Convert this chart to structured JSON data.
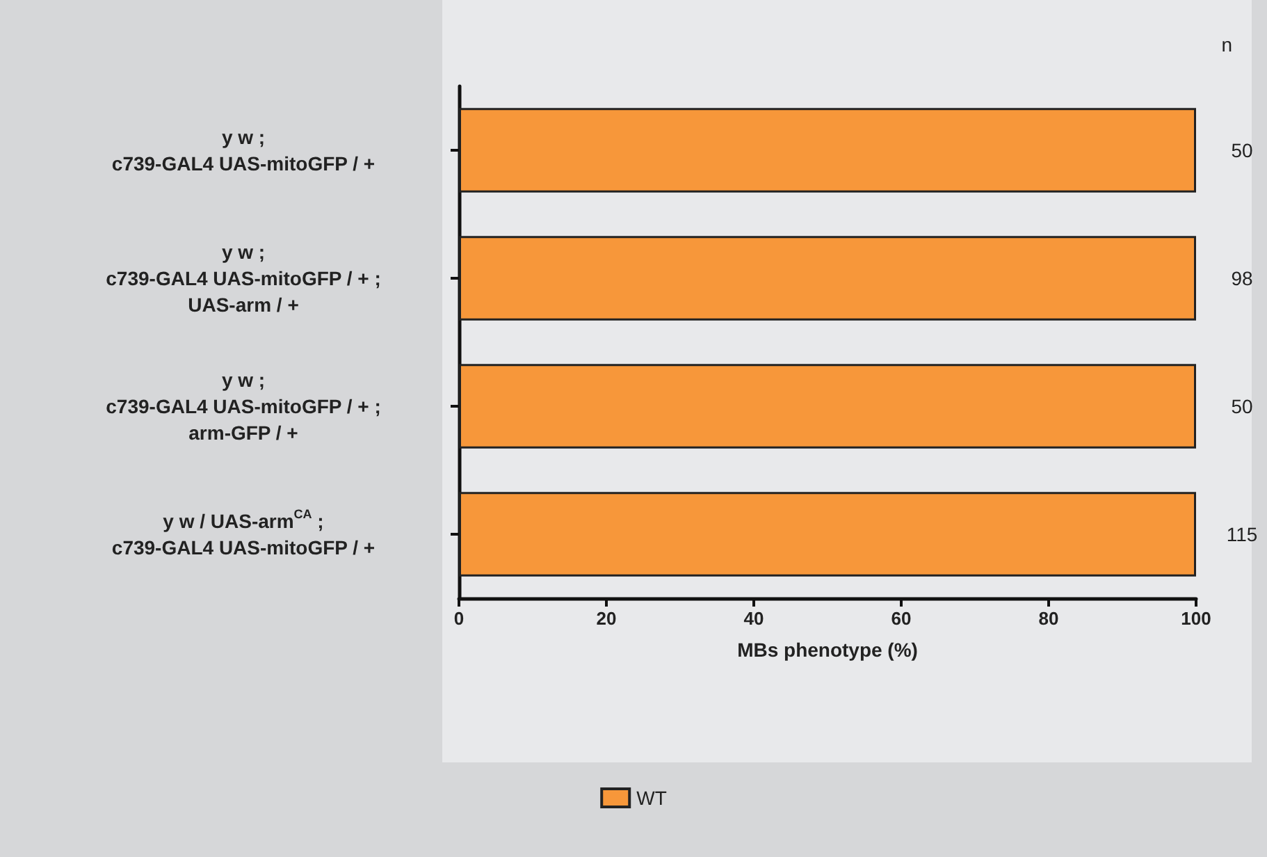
{
  "chart_data": {
    "type": "bar",
    "orientation": "horizontal",
    "categories": [
      "y w ;\nc739-GAL4 UAS-mitoGFP / +",
      "y w ;\nc739-GAL4 UAS-mitoGFP / + ;\nUAS-arm / +",
      "y w ;\nc739-GAL4 UAS-mitoGFP / + ;\narm-GFP / +",
      "y w / UAS-arm$^{CA}$ ;\nc739-GAL4 UAS-mitoGFP / +"
    ],
    "series": [
      {
        "name": "WT",
        "color": "#f7973a",
        "values": [
          100,
          100,
          100,
          100
        ]
      }
    ],
    "xlabel": "MBs phenotype (%)",
    "xlim": [
      0,
      100
    ],
    "xticks": [
      0,
      20,
      40,
      60,
      80,
      100
    ],
    "grid": false,
    "legend": "bottom",
    "annotations": [
      "n",
      "50",
      "98",
      "50",
      "115"
    ]
  }
}
